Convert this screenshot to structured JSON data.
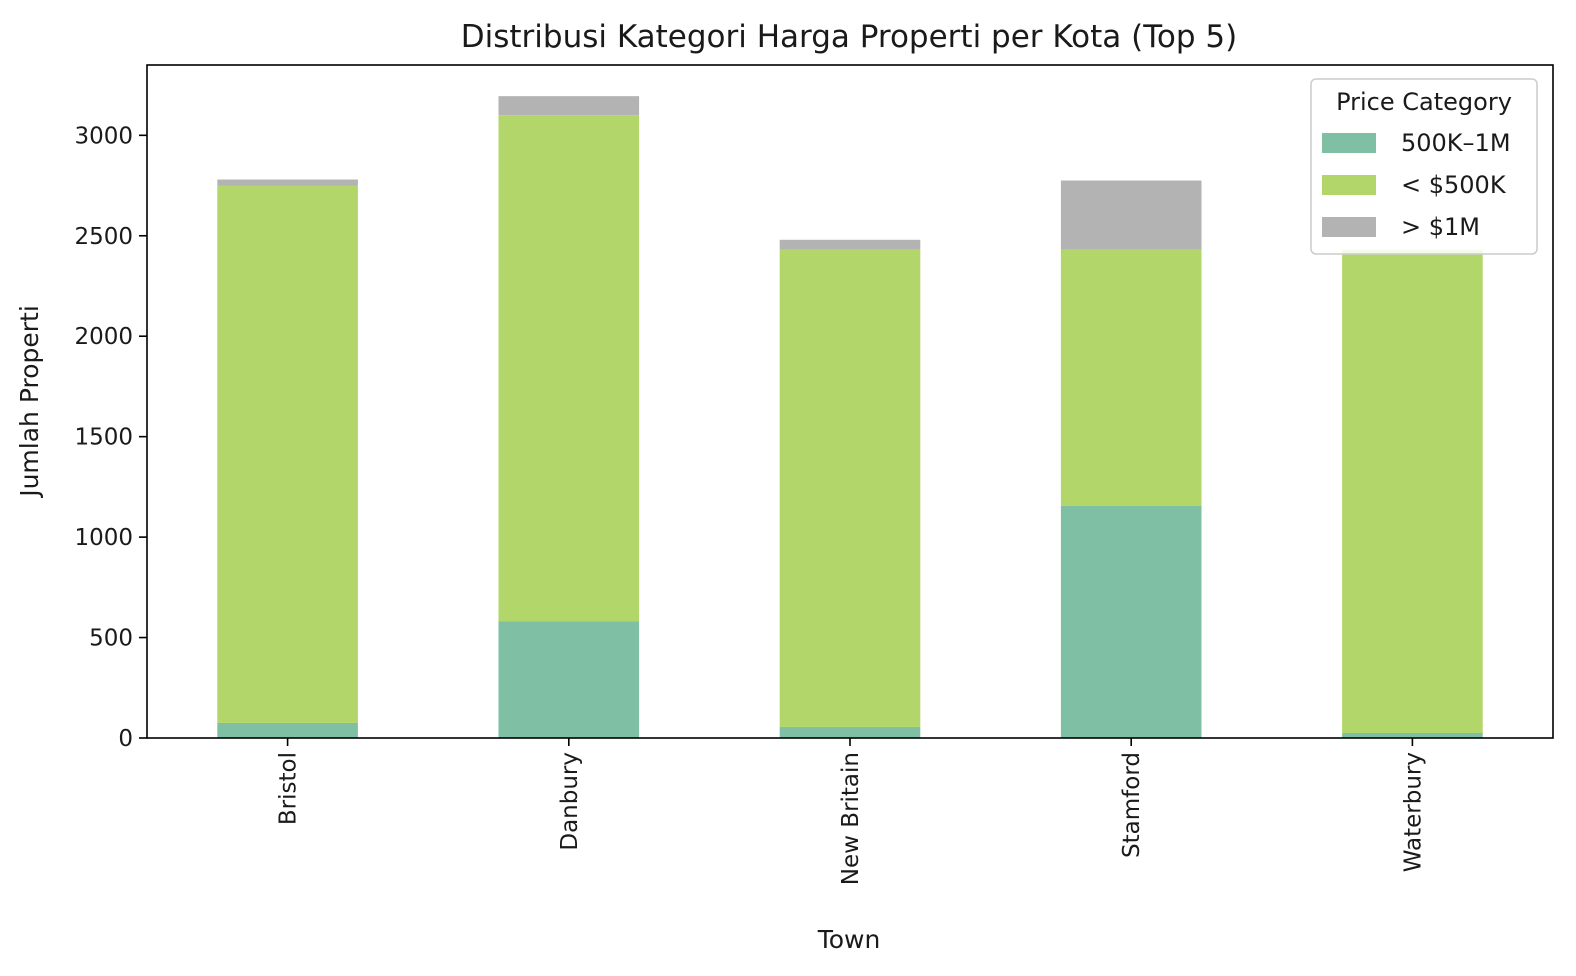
{
  "chart_data": {
    "type": "bar",
    "stacked": true,
    "title": "Distribusi Kategori Harga Properti per Kota (Top 5)",
    "xlabel": "Town",
    "ylabel": "Jumlah Properti",
    "categories": [
      "Bristol",
      "Danbury",
      "New Britain",
      "Stamford",
      "Waterbury"
    ],
    "ylim": [
      0,
      3350
    ],
    "yticks": [
      0,
      500,
      1000,
      1500,
      2000,
      2500,
      3000
    ],
    "series": [
      {
        "name": "500K–1M",
        "color": "#7fbfa4",
        "values": [
          75,
          580,
          55,
          1155,
          25
        ]
      },
      {
        "name": "< $500K",
        "color": "#b2d66a",
        "values": [
          2675,
          2520,
          2375,
          1275,
          2405
        ]
      },
      {
        "name": "> $1M",
        "color": "#b3b3b3",
        "values": [
          30,
          95,
          50,
          345,
          0
        ]
      }
    ],
    "legend": {
      "title": "Price Category",
      "placement": "top-right"
    },
    "grid": false
  }
}
